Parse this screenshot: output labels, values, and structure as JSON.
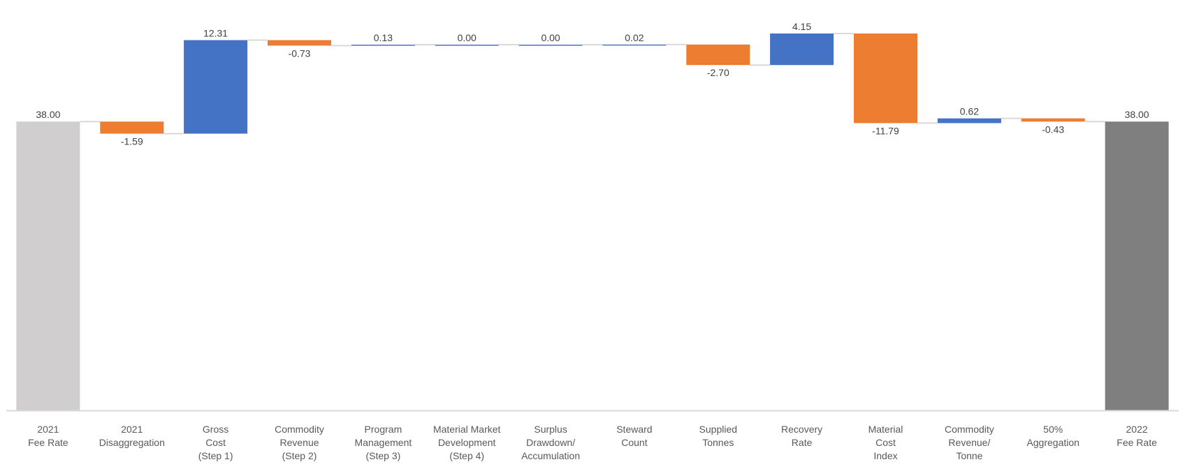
{
  "chart_data": {
    "type": "waterfall",
    "title": "",
    "xlabel": "",
    "ylabel": "",
    "ylim": [
      0,
      54
    ],
    "grid": false,
    "legend": "none",
    "categories": [
      [
        "2021",
        "Fee Rate"
      ],
      [
        "2021",
        "Disaggregation"
      ],
      [
        "Gross",
        "Cost",
        "(Step 1)"
      ],
      [
        "Commodity",
        "Revenue",
        "(Step 2)"
      ],
      [
        "Program",
        "Management",
        "(Step 3)"
      ],
      [
        "Material Market",
        "Development",
        "(Step 4)"
      ],
      [
        "Surplus",
        "Drawdown/",
        "Accumulation"
      ],
      [
        "Steward",
        "Count"
      ],
      [
        "Supplied",
        "Tonnes"
      ],
      [
        "Recovery",
        "Rate"
      ],
      [
        "Material",
        "Cost",
        "Index"
      ],
      [
        "Commodity",
        "Revenue/",
        "Tonne"
      ],
      [
        "50%",
        "Aggregation"
      ],
      [
        "2022",
        "Fee Rate"
      ]
    ],
    "values": [
      38.0,
      -1.59,
      12.31,
      -0.73,
      0.13,
      0.0,
      0.0,
      0.02,
      -2.7,
      4.15,
      -11.79,
      0.62,
      -0.43,
      38.0
    ],
    "value_labels": [
      "38.00",
      "-1.59",
      "12.31",
      "-0.73",
      "0.13",
      "0.00",
      "0.00",
      "0.02",
      "-2.70",
      "4.15",
      "-11.79",
      "0.62",
      "-0.43",
      "38.00"
    ],
    "kinds": [
      "start",
      "delta",
      "delta",
      "delta",
      "delta",
      "delta",
      "delta",
      "delta",
      "delta",
      "delta",
      "delta",
      "delta",
      "delta",
      "end"
    ],
    "colors": {
      "start": "#d0cece",
      "end": "#7f7f7f",
      "increase": "#4472c4",
      "decrease": "#ed7d31",
      "connector": "#d9d9d9",
      "axis": "#d9d9d9",
      "label": "#404040",
      "category_label": "#595959"
    }
  }
}
